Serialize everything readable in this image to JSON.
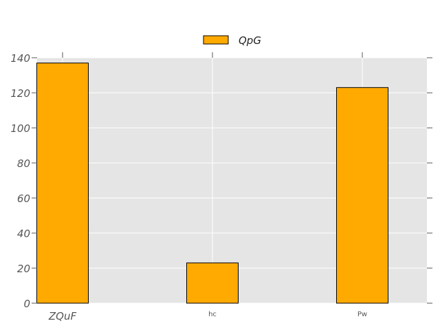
{
  "chart_data": {
    "type": "bar",
    "categories": [
      "ZQuF",
      "hc",
      "Pw"
    ],
    "series": [
      {
        "name": "QpG",
        "values": [
          137,
          23,
          123
        ],
        "color": "#ffaa00"
      }
    ],
    "title": "",
    "xlabel": "",
    "ylabel": "",
    "ylim": [
      0,
      140
    ],
    "yticks": [
      0,
      20,
      40,
      60,
      80,
      100,
      120,
      140
    ],
    "grid": true,
    "legend_position": "top-center",
    "background_color": "#e5e5e5",
    "grid_color": "#ffffff",
    "bar_edge_color": "#000000"
  }
}
